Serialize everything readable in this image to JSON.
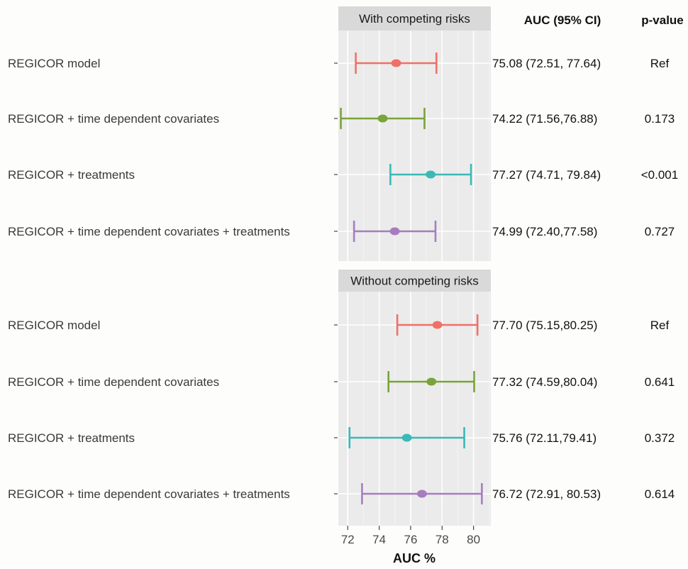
{
  "headers": {
    "auc": "AUC (95% CI)",
    "pvalue": "p-value"
  },
  "chart_data": {
    "type": "forest",
    "xlabel": "AUC %",
    "xlim": [
      71.4,
      81.1
    ],
    "xticks": [
      72,
      74,
      76,
      78,
      80
    ],
    "grid": true,
    "panels": [
      {
        "title": "With competing risks",
        "rows": [
          {
            "label": "REGICOR model",
            "est": 75.08,
            "lo": 72.51,
            "hi": 77.64,
            "ci_text": "75.08 (72.51, 77.64)",
            "p_text": "Ref",
            "color": "#f07068"
          },
          {
            "label": "REGICOR + time dependent covariates",
            "est": 74.22,
            "lo": 71.56,
            "hi": 76.88,
            "ci_text": "74.22 (71.56,76.88)",
            "p_text": "0.173",
            "color": "#7aa33a"
          },
          {
            "label": "REGICOR + treatments",
            "est": 77.27,
            "lo": 74.71,
            "hi": 79.84,
            "ci_text": "77.27 (74.71, 79.84)",
            "p_text": "<0.001",
            "color": "#3bb8b8"
          },
          {
            "label": "REGICOR + time dependent covariates + treatments",
            "est": 74.99,
            "lo": 72.4,
            "hi": 77.58,
            "ci_text": "74.99 (72.40,77.58)",
            "p_text": "0.727",
            "color": "#a87cc0"
          }
        ]
      },
      {
        "title": "Without competing risks",
        "rows": [
          {
            "label": "REGICOR model",
            "est": 77.7,
            "lo": 75.15,
            "hi": 80.25,
            "ci_text": "77.70 (75.15,80.25)",
            "p_text": "Ref",
            "color": "#f07068"
          },
          {
            "label": "REGICOR + time dependent covariates",
            "est": 77.32,
            "lo": 74.59,
            "hi": 80.04,
            "ci_text": "77.32 (74.59,80.04)",
            "p_text": "0.641",
            "color": "#7aa33a"
          },
          {
            "label": "REGICOR + treatments",
            "est": 75.76,
            "lo": 72.11,
            "hi": 79.41,
            "ci_text": "75.76 (72.11,79.41)",
            "p_text": "0.372",
            "color": "#3bb8b8"
          },
          {
            "label": "REGICOR + time dependent covariates + treatments",
            "est": 76.72,
            "lo": 72.91,
            "hi": 80.53,
            "ci_text": "76.72 (72.91, 80.53)",
            "p_text": "0.614",
            "color": "#a87cc0"
          }
        ]
      }
    ]
  }
}
